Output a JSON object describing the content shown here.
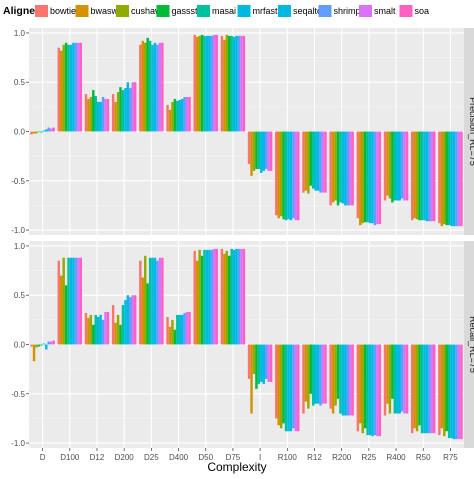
{
  "chart_data": {
    "type": "bar",
    "legend": {
      "title": "Aligner",
      "position": "top",
      "items": [
        "bowtie2",
        "bwasw",
        "cushaw2",
        "gassst",
        "masai",
        "mrfast",
        "seqalto",
        "shrimp2",
        "smalt",
        "soa"
      ]
    },
    "colors": [
      "#F8766D",
      "#D39200",
      "#93AA00",
      "#00BA38",
      "#00C19F",
      "#00B9E3",
      "#00B9E3",
      "#619CFF",
      "#DB72FB",
      "#FF61C3"
    ],
    "categories": [
      "D",
      "D100",
      "D12",
      "D200",
      "D25",
      "D400",
      "D50",
      "D75",
      "I",
      "R100",
      "R12",
      "R200",
      "R25",
      "R400",
      "R50",
      "R75"
    ],
    "xlabel": "Complexity",
    "ylabel": "",
    "ylim": [
      -1.05,
      1.05
    ],
    "yticks": [
      "1.0",
      "0.5",
      "0.0",
      "-0.5",
      "-1.0"
    ],
    "grid": true,
    "panels": [
      {
        "strip": "Precision_RL=75",
        "series": [
          {
            "name": "bowtie2",
            "values": [
              -0.03,
              0.85,
              0.38,
              0.38,
              0.88,
              0.27,
              0.98,
              0.97,
              -0.33,
              -0.85,
              -0.62,
              -0.75,
              -0.88,
              -0.7,
              -0.9,
              -0.93
            ]
          },
          {
            "name": "bwasw",
            "values": [
              -0.02,
              0.82,
              0.33,
              0.3,
              0.92,
              0.22,
              0.96,
              0.93,
              -0.45,
              -0.88,
              -0.6,
              -0.72,
              -0.95,
              -0.65,
              -0.88,
              -0.96
            ]
          },
          {
            "name": "cushaw2",
            "values": [
              -0.02,
              0.88,
              0.35,
              0.4,
              0.9,
              0.3,
              0.97,
              0.98,
              -0.4,
              -0.86,
              -0.63,
              -0.7,
              -0.93,
              -0.68,
              -0.89,
              -0.94
            ]
          },
          {
            "name": "gassst",
            "values": [
              0.0,
              0.9,
              0.42,
              0.45,
              0.95,
              0.33,
              0.98,
              0.97,
              -0.38,
              -0.89,
              -0.55,
              -0.75,
              -0.92,
              -0.72,
              -0.9,
              -0.95
            ]
          },
          {
            "name": "masai",
            "values": [
              -0.01,
              0.88,
              0.36,
              0.42,
              0.92,
              0.31,
              0.97,
              0.97,
              -0.38,
              -0.9,
              -0.58,
              -0.72,
              -0.92,
              -0.7,
              -0.9,
              -0.95
            ]
          },
          {
            "name": "mrfast",
            "values": [
              0.01,
              0.88,
              0.3,
              0.44,
              0.88,
              0.32,
              0.97,
              0.96,
              -0.42,
              -0.89,
              -0.6,
              -0.73,
              -0.93,
              -0.7,
              -0.9,
              -0.96
            ]
          },
          {
            "name": "seqalto",
            "values": [
              0.02,
              0.9,
              0.3,
              0.5,
              0.9,
              0.33,
              0.97,
              0.97,
              -0.4,
              -0.9,
              -0.6,
              -0.75,
              -0.93,
              -0.7,
              -0.91,
              -0.96
            ]
          },
          {
            "name": "shrimp2",
            "values": [
              0.04,
              0.9,
              0.35,
              0.44,
              0.88,
              0.35,
              0.97,
              0.97,
              -0.38,
              -0.88,
              -0.62,
              -0.75,
              -0.95,
              -0.68,
              -0.91,
              -0.96
            ]
          },
          {
            "name": "smalt",
            "values": [
              0.03,
              0.9,
              0.33,
              0.5,
              0.9,
              0.35,
              0.98,
              0.97,
              -0.4,
              -0.9,
              -0.62,
              -0.75,
              -0.94,
              -0.7,
              -0.91,
              -0.96
            ]
          },
          {
            "name": "soa",
            "values": [
              0.04,
              0.9,
              0.33,
              0.5,
              0.9,
              0.35,
              0.98,
              0.97,
              -0.4,
              -0.9,
              -0.62,
              -0.75,
              -0.94,
              -0.7,
              -0.91,
              -0.96
            ]
          }
        ]
      },
      {
        "strip": "Recall_RL=75",
        "series": [
          {
            "name": "bowtie2",
            "values": [
              -0.02,
              0.85,
              0.32,
              0.4,
              0.85,
              0.28,
              0.95,
              0.97,
              -0.35,
              -0.75,
              -0.7,
              -0.65,
              -0.88,
              -0.72,
              -0.9,
              -0.92
            ]
          },
          {
            "name": "bwasw",
            "values": [
              -0.17,
              0.7,
              0.27,
              0.22,
              0.68,
              0.18,
              0.85,
              0.92,
              -0.7,
              -0.82,
              -0.58,
              -0.7,
              -0.8,
              -0.6,
              -0.85,
              -0.85
            ]
          },
          {
            "name": "cushaw2",
            "values": [
              -0.03,
              0.88,
              0.3,
              0.3,
              0.9,
              0.25,
              0.96,
              0.95,
              -0.3,
              -0.85,
              -0.65,
              -0.62,
              -0.9,
              -0.7,
              -0.88,
              -0.93
            ]
          },
          {
            "name": "gassst",
            "values": [
              -0.02,
              0.6,
              0.2,
              0.2,
              0.62,
              0.15,
              0.9,
              0.9,
              -0.45,
              -0.8,
              -0.5,
              -0.55,
              -0.85,
              -0.55,
              -0.82,
              -0.88
            ]
          },
          {
            "name": "masai",
            "values": [
              -0.01,
              0.88,
              0.3,
              0.4,
              0.88,
              0.3,
              0.96,
              0.97,
              -0.4,
              -0.88,
              -0.62,
              -0.7,
              -0.92,
              -0.7,
              -0.9,
              -0.95
            ]
          },
          {
            "name": "mrfast",
            "values": [
              0.01,
              0.88,
              0.28,
              0.45,
              0.88,
              0.3,
              0.96,
              0.96,
              -0.38,
              -0.88,
              -0.6,
              -0.72,
              -0.92,
              -0.7,
              -0.9,
              -0.95
            ]
          },
          {
            "name": "seqalto",
            "values": [
              -0.05,
              0.88,
              0.3,
              0.5,
              0.88,
              0.3,
              0.96,
              0.97,
              -0.4,
              -0.88,
              -0.6,
              -0.72,
              -0.93,
              -0.7,
              -0.9,
              -0.96
            ]
          },
          {
            "name": "shrimp2",
            "values": [
              0.03,
              0.88,
              0.25,
              0.48,
              0.85,
              0.32,
              0.96,
              0.97,
              -0.35,
              -0.85,
              -0.62,
              -0.72,
              -0.92,
              -0.68,
              -0.9,
              -0.96
            ]
          },
          {
            "name": "smalt",
            "values": [
              0.03,
              0.88,
              0.33,
              0.5,
              0.88,
              0.33,
              0.97,
              0.97,
              -0.38,
              -0.88,
              -0.6,
              -0.72,
              -0.93,
              -0.7,
              -0.9,
              -0.96
            ]
          },
          {
            "name": "soa",
            "values": [
              0.04,
              0.88,
              0.33,
              0.5,
              0.88,
              0.33,
              0.97,
              0.97,
              -0.38,
              -0.88,
              -0.6,
              -0.72,
              -0.93,
              -0.7,
              -0.9,
              -0.96
            ]
          }
        ]
      }
    ]
  }
}
